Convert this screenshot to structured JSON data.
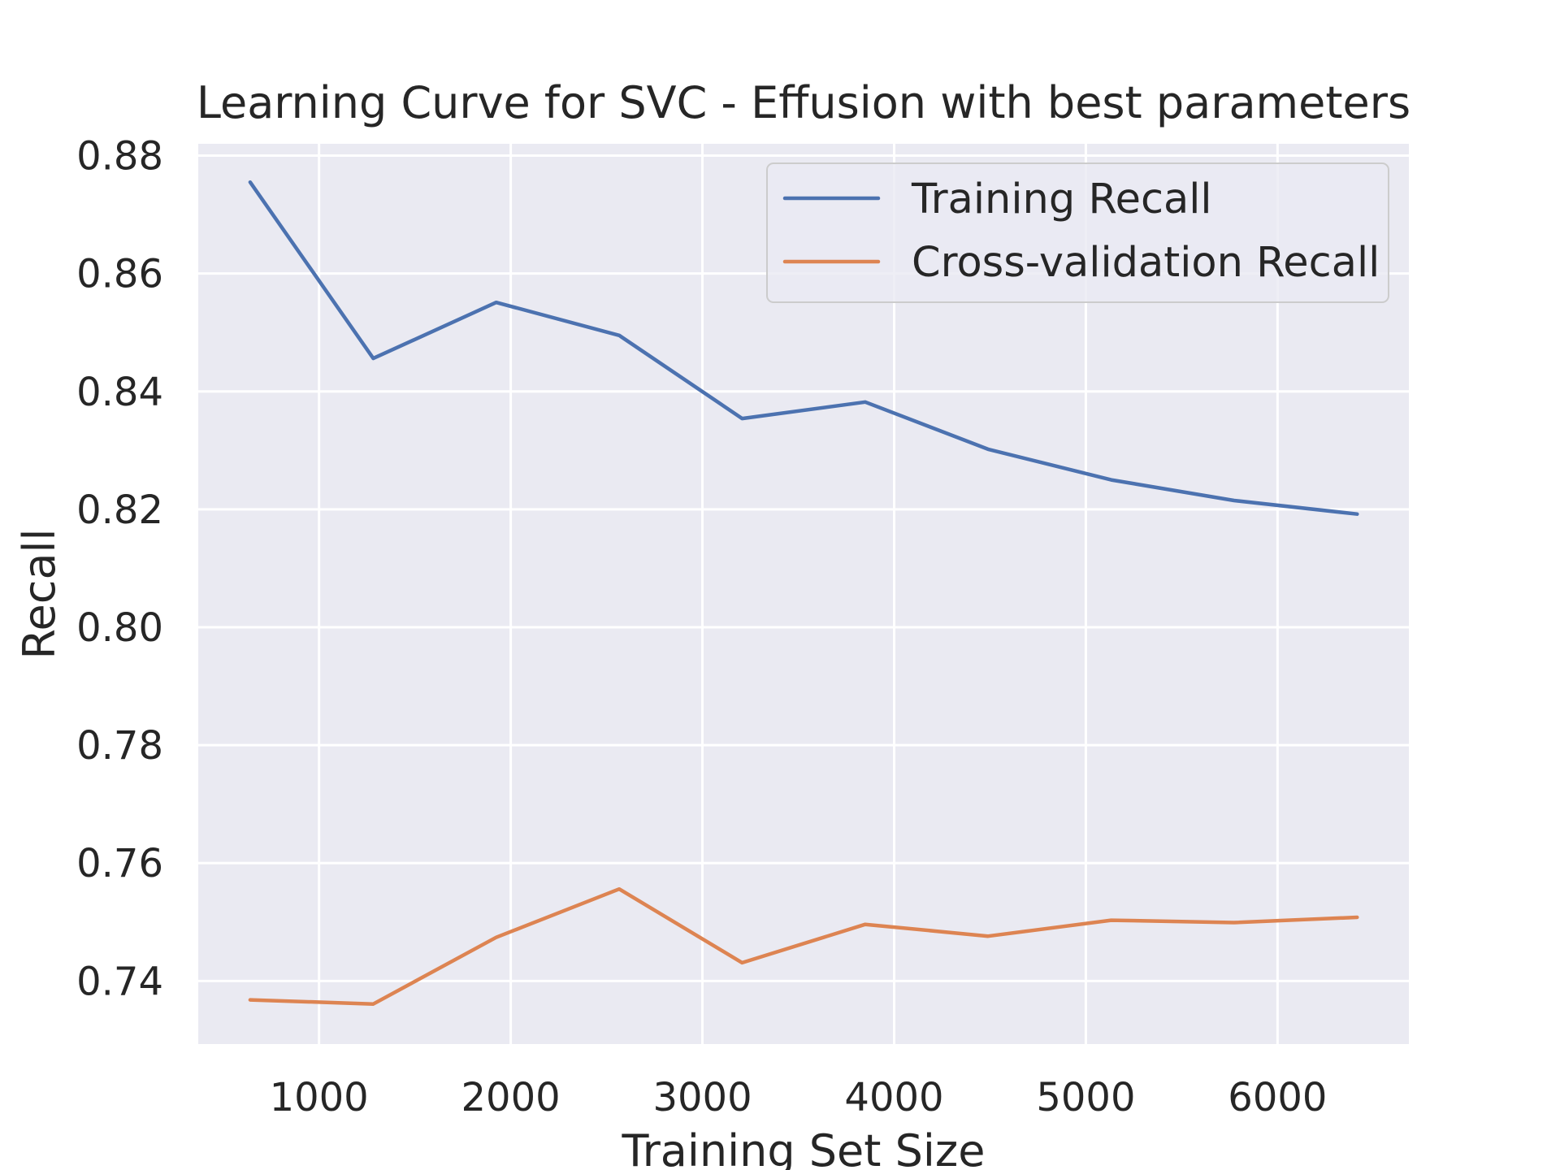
{
  "chart_data": {
    "type": "line",
    "title": "Learning Curve for SVC - Effusion with best parameters",
    "xlabel": "Training Set Size",
    "ylabel": "Recall",
    "x": [
      641,
      1283,
      1924,
      2566,
      3207,
      3849,
      4490,
      5132,
      5773,
      6415
    ],
    "series": [
      {
        "name": "Training Recall",
        "color": "#4c72b0",
        "values": [
          0.8755,
          0.8456,
          0.8551,
          0.8495,
          0.8354,
          0.8382,
          0.8302,
          0.825,
          0.8215,
          0.8192
        ]
      },
      {
        "name": "Cross-validation Recall",
        "color": "#dd8452",
        "values": [
          0.7368,
          0.7361,
          0.7474,
          0.7556,
          0.7431,
          0.7496,
          0.7476,
          0.7503,
          0.7499,
          0.7508
        ]
      }
    ],
    "xlim": [
      370,
      6685
    ],
    "ylim": [
      0.7293,
      0.882
    ],
    "xticks": [
      1000,
      2000,
      3000,
      4000,
      5000,
      6000
    ],
    "xtick_labels": [
      "1000",
      "2000",
      "3000",
      "4000",
      "5000",
      "6000"
    ],
    "yticks": [
      0.74,
      0.76,
      0.78,
      0.8,
      0.82,
      0.84,
      0.86,
      0.88
    ],
    "ytick_labels": [
      "0.74",
      "0.76",
      "0.78",
      "0.80",
      "0.82",
      "0.84",
      "0.86",
      "0.88"
    ],
    "grid": true,
    "legend_position": "top-right",
    "background_color": "#eaeaf2",
    "grid_color": "#ffffff"
  }
}
